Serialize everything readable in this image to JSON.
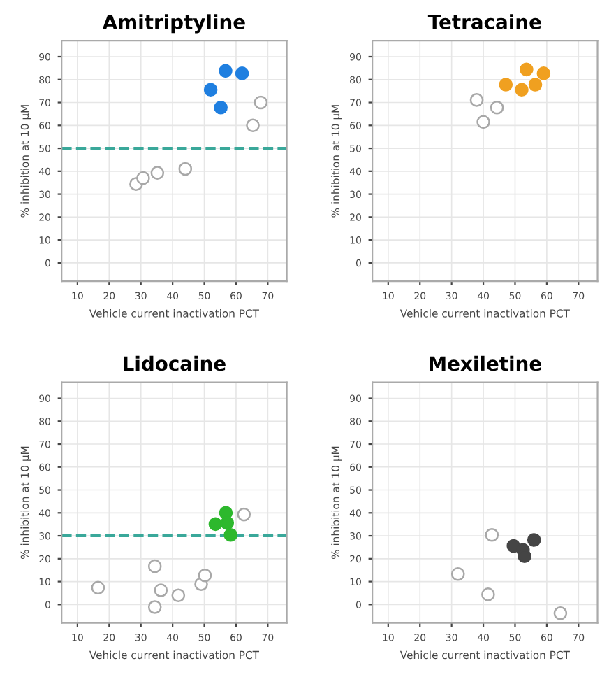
{
  "chart_data": [
    {
      "type": "scatter",
      "title": "Amitriptyline",
      "xlabel": "Vehicle current inactivation PCT",
      "ylabel": "% inhibition at 10 µM",
      "xlim": [
        5,
        76
      ],
      "ylim": [
        -8,
        97
      ],
      "xticks": [
        10,
        20,
        30,
        40,
        50,
        60,
        70
      ],
      "yticks": [
        0,
        10,
        20,
        30,
        40,
        50,
        60,
        70,
        80,
        90
      ],
      "grid": true,
      "marker": "circle",
      "series": [
        {
          "color": "#1f7fe0",
          "x": [
            52,
            56.7,
            61.9,
            55.2
          ],
          "values": [
            75.6,
            83.8,
            82.7,
            67.8
          ]
        },
        {
          "color": "#ffffff",
          "x": [
            67.8,
            65.3,
            28.5,
            30.7,
            35.2,
            44
          ],
          "values": [
            70,
            60,
            34.4,
            37,
            39.3,
            41
          ]
        }
      ],
      "ref_lines": [
        {
          "axis": "y",
          "value": 50,
          "color": "#3aa89a",
          "line_style": "dashed"
        }
      ]
    },
    {
      "type": "scatter",
      "title": "Tetracaine",
      "xlabel": "Vehicle current inactivation PCT",
      "ylabel": "% inhibition at 10 µM",
      "xlim": [
        5,
        76
      ],
      "ylim": [
        -8,
        97
      ],
      "xticks": [
        10,
        20,
        30,
        40,
        50,
        60,
        70
      ],
      "yticks": [
        0,
        10,
        20,
        30,
        40,
        50,
        60,
        70,
        80,
        90
      ],
      "grid": true,
      "marker": "circle",
      "series": [
        {
          "color": "#f0a020",
          "x": [
            47.1,
            53.6,
            52.1,
            56.4,
            59
          ],
          "values": [
            77.8,
            84.4,
            75.6,
            77.8,
            82.7
          ]
        },
        {
          "color": "#ffffff",
          "x": [
            37.9,
            40,
            44.3
          ],
          "values": [
            71.1,
            61.5,
            67.8
          ]
        }
      ]
    },
    {
      "type": "scatter",
      "title": "Lidocaine",
      "xlabel": "Vehicle current inactivation PCT",
      "ylabel": "% inhibition at 10 µM",
      "xlim": [
        5,
        76
      ],
      "ylim": [
        -8,
        97
      ],
      "xticks": [
        10,
        20,
        30,
        40,
        50,
        60,
        70
      ],
      "yticks": [
        0,
        10,
        20,
        30,
        40,
        50,
        60,
        70,
        80,
        90
      ],
      "grid": true,
      "marker": "circle",
      "series": [
        {
          "color": "#2db82d",
          "x": [
            53.5,
            56.8,
            57.2,
            58.3
          ],
          "values": [
            35.1,
            40,
            35.6,
            30.4
          ]
        },
        {
          "color": "#ffffff",
          "x": [
            62.5,
            16.5,
            34.4,
            36.3,
            34.4,
            41.8,
            49,
            50.2
          ],
          "values": [
            39.3,
            7.3,
            16.7,
            6.2,
            -1.1,
            4,
            8.9,
            12.7
          ]
        }
      ],
      "ref_lines": [
        {
          "axis": "y",
          "value": 30,
          "color": "#3aa89a",
          "line_style": "dashed"
        }
      ]
    },
    {
      "type": "scatter",
      "title": "Mexiletine",
      "xlabel": "Vehicle current inactivation PCT",
      "ylabel": "% inhibition at 10 µM",
      "xlim": [
        5,
        76
      ],
      "ylim": [
        -8,
        97
      ],
      "xticks": [
        10,
        20,
        30,
        40,
        50,
        60,
        70
      ],
      "yticks": [
        0,
        10,
        20,
        30,
        40,
        50,
        60,
        70,
        80,
        90
      ],
      "grid": true,
      "marker": "circle",
      "series": [
        {
          "color": "#454545",
          "x": [
            49.5,
            52.5,
            53,
            56
          ],
          "values": [
            25.6,
            23.8,
            21.1,
            28.2
          ]
        },
        {
          "color": "#ffffff",
          "x": [
            42.7,
            32,
            41.5,
            64.3
          ],
          "values": [
            30.4,
            13.3,
            4.4,
            -3.8
          ]
        }
      ]
    }
  ]
}
